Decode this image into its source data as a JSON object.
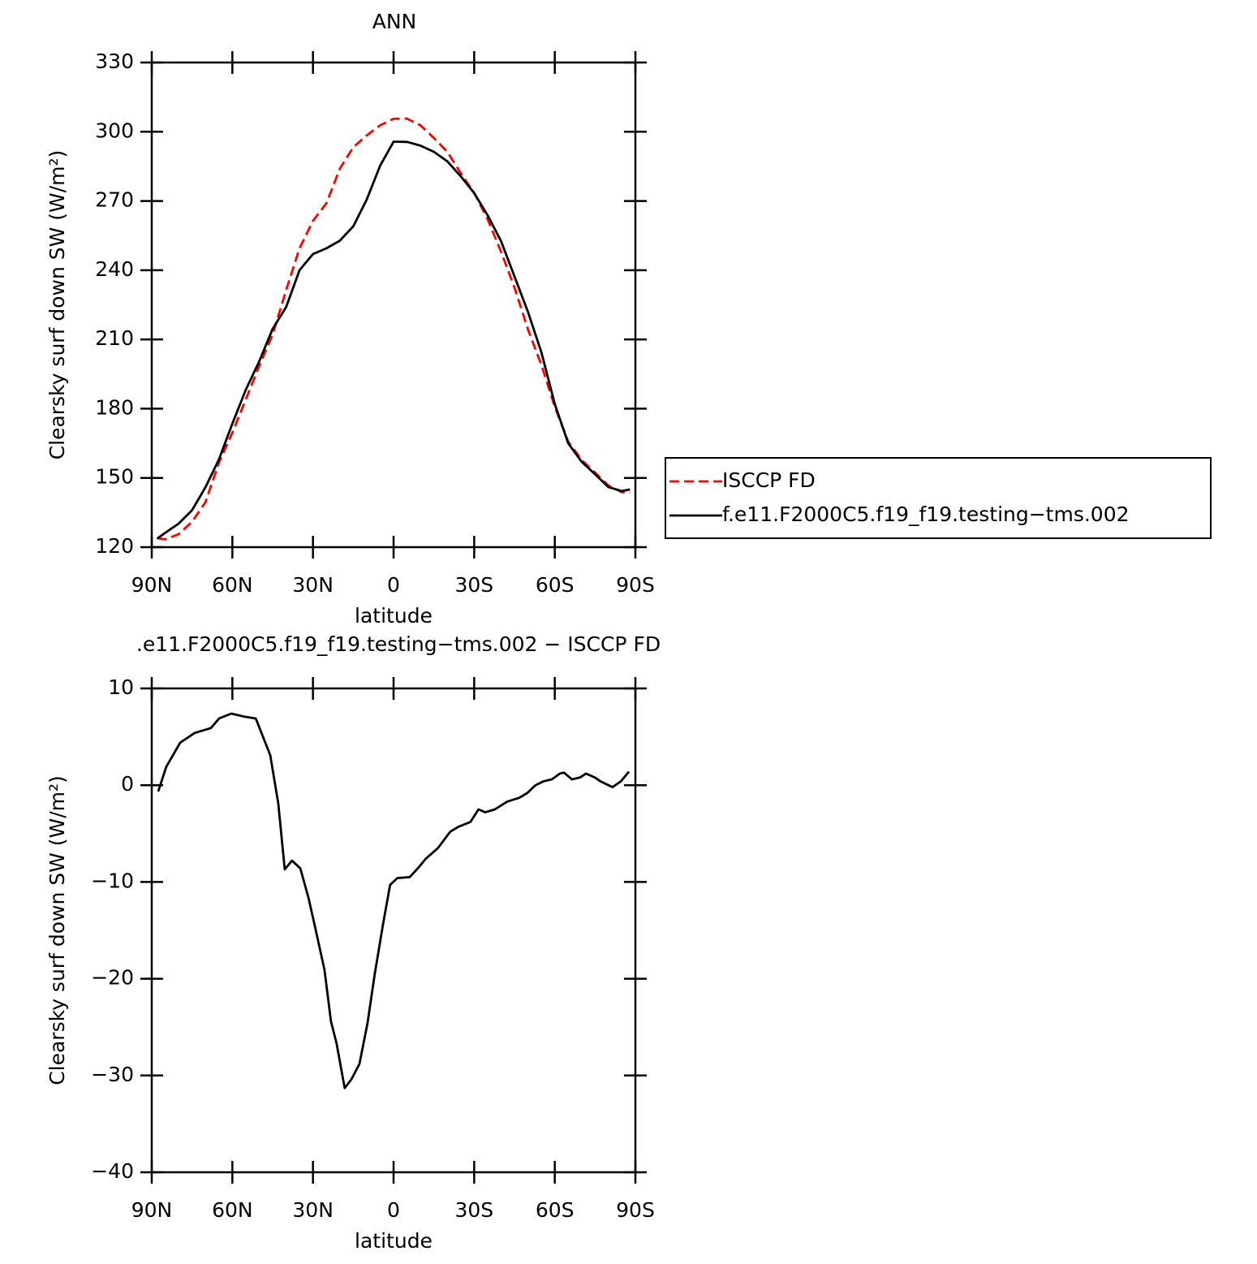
{
  "chart_data": [
    {
      "type": "line",
      "title": "ANN",
      "xlabel": "latitude",
      "ylabel": "Clearsky surf down SW (W/m²)",
      "x": [
        88,
        85,
        80,
        75,
        70,
        65,
        60,
        55,
        50,
        45,
        40,
        35,
        30,
        25,
        20,
        15,
        10,
        5,
        0,
        -5,
        -10,
        -15,
        -20,
        -25,
        -30,
        -35,
        -40,
        -45,
        -50,
        -55,
        -60,
        -65,
        -70,
        -75,
        -80,
        -85,
        -88
      ],
      "series": [
        {
          "name": "ISCCP FD",
          "color": "#ff0000",
          "dash": true,
          "values": [
            123.9,
            123.4,
            125.6,
            131,
            139.5,
            156.6,
            169.6,
            184,
            198.5,
            212.1,
            231.3,
            249.5,
            261.4,
            269,
            284,
            293.3,
            298.4,
            302.8,
            305.6,
            305.7,
            302.8,
            297.3,
            291.3,
            282.1,
            273.5,
            262.1,
            248,
            232.5,
            214.4,
            199,
            180.8,
            165.7,
            157.8,
            152.3,
            146.7,
            143.8,
            143.6
          ]
        },
        {
          "name": "f.e11.F2000C5.f19_f19.testing−tms.002",
          "color": "#000000",
          "dash": false,
          "values": [
            123.7,
            126.2,
            130.2,
            136,
            146,
            158,
            173.5,
            188.2,
            200.5,
            214.6,
            224,
            240,
            247,
            249.5,
            252.8,
            259,
            270.6,
            285.3,
            295.7,
            295.6,
            294,
            291.3,
            287.2,
            280.7,
            273.4,
            263.8,
            252.6,
            237.3,
            222,
            204.5,
            182,
            165,
            157,
            151.6,
            146,
            144.3,
            145
          ]
        }
      ],
      "xlim": [
        90,
        -90
      ],
      "xticks": [
        {
          "value": 90,
          "label": "90N"
        },
        {
          "value": 60,
          "label": "60N"
        },
        {
          "value": 30,
          "label": "30N"
        },
        0,
        {
          "value": -30,
          "label": "30S"
        },
        {
          "value": -60,
          "label": "60S"
        },
        {
          "value": -90,
          "label": "90S"
        }
      ],
      "ylim": [
        120,
        330
      ],
      "yticks": [
        120,
        150,
        180,
        210,
        240,
        270,
        300,
        330
      ],
      "legend": "right"
    },
    {
      "type": "line",
      "title": ".e11.F2000C5.f19_f19.testing−tms.002 − ISCCP FD",
      "xlabel": "latitude",
      "ylabel": "Clearsky surf down SW (W/m²)",
      "x": [
        87.6,
        84.6,
        79.4,
        74.0,
        68.0,
        64.9,
        60.4,
        55.8,
        51.3,
        48.3,
        45.9,
        42.9,
        40.5,
        37.8,
        34.7,
        31.7,
        28.7,
        25.7,
        23.3,
        21.2,
        18.2,
        15.7,
        12.7,
        9.7,
        7.0,
        4.0,
        1.3,
        -1.4,
        -6.0,
        -9.0,
        -12.0,
        -16.5,
        -21.1,
        -24.1,
        -28.6,
        -31.6,
        -34.1,
        -37.7,
        -42.3,
        -46.8,
        -49.8,
        -52.8,
        -55.8,
        -58.9,
        -61.9,
        -63.4,
        -66.4,
        -69.4,
        -71.6,
        -74.9,
        -77.0,
        -81.5,
        -84.6,
        -87.6
      ],
      "series": [
        {
          "color": "#000000",
          "dash": false,
          "values": [
            -0.65,
            1.9,
            4.4,
            5.4,
            5.9,
            6.9,
            7.4,
            7.1,
            6.9,
            4.8,
            3.1,
            -1.9,
            -8.7,
            -7.8,
            -8.6,
            -11.6,
            -15.3,
            -19.1,
            -24.4,
            -26.7,
            -31.3,
            -30.4,
            -28.8,
            -24.6,
            -19.5,
            -14.5,
            -10.3,
            -9.6,
            -9.5,
            -8.6,
            -7.6,
            -6.5,
            -4.8,
            -4.3,
            -3.8,
            -2.5,
            -2.8,
            -2.5,
            -1.7,
            -1.3,
            -0.8,
            0.0,
            0.4,
            0.6,
            1.2,
            1.3,
            0.6,
            0.8,
            1.2,
            0.8,
            0.4,
            -0.2,
            0.4,
            1.4
          ]
        }
      ],
      "xlim": [
        90,
        -90
      ],
      "xticks": [
        {
          "value": 90,
          "label": "90N"
        },
        {
          "value": 60,
          "label": "60N"
        },
        {
          "value": 30,
          "label": "30N"
        },
        0,
        {
          "value": -30,
          "label": "30S"
        },
        {
          "value": -60,
          "label": "60S"
        },
        {
          "value": -90,
          "label": "90S"
        }
      ],
      "ylim": [
        -40,
        10
      ],
      "yticks": [
        {
          "value": -40,
          "label": "−40"
        },
        {
          "value": -30,
          "label": "−30"
        },
        {
          "value": -20,
          "label": "−20"
        },
        {
          "value": -10,
          "label": "−10"
        },
        0,
        10
      ]
    }
  ]
}
